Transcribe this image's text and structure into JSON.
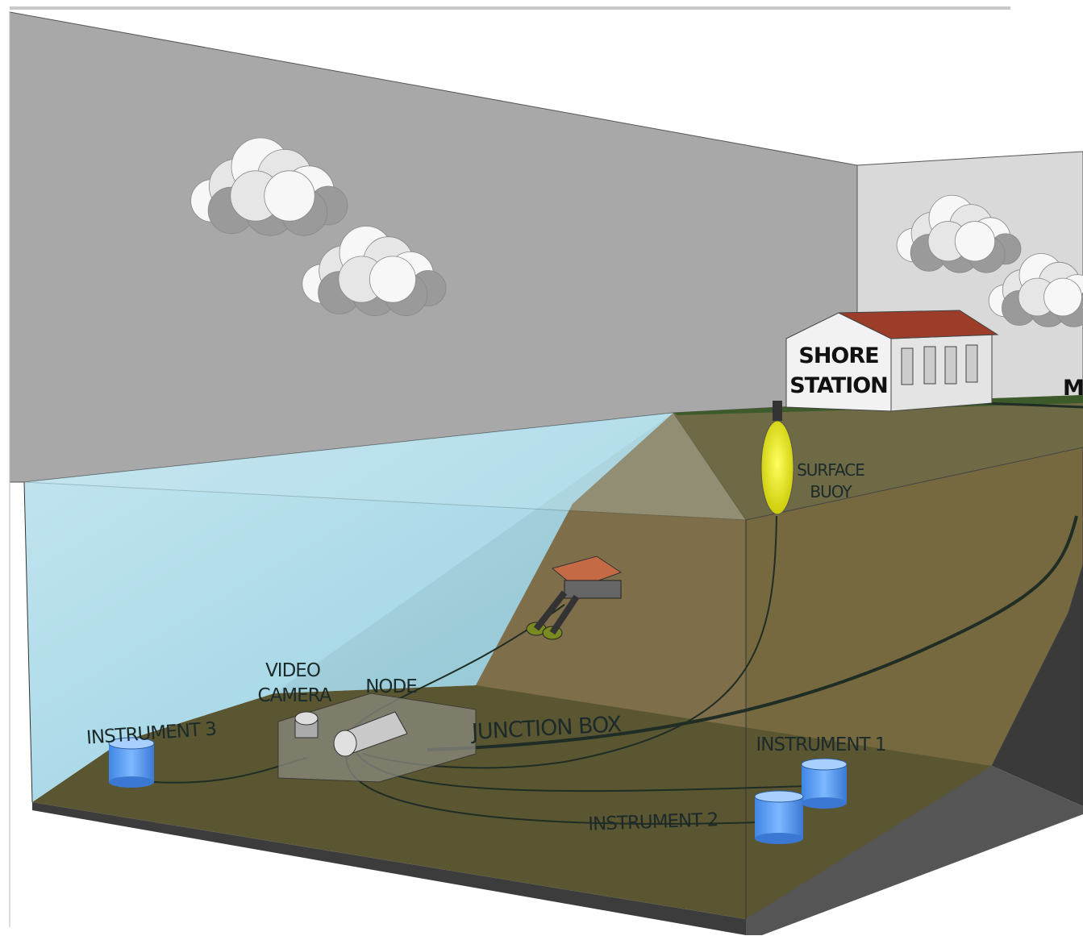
{
  "labels": {
    "shore_station": [
      "SHORE",
      "STATION"
    ],
    "cut_label": "M",
    "surface_buoy": [
      "SURFACE",
      "BUOY"
    ],
    "video_camera": [
      "VIDEO",
      "CAMERA"
    ],
    "node": "NODE",
    "junction_box": "JUNCTION BOX",
    "instrument_3": "INSTRUMENT 3",
    "instrument_1": "INSTRUMENT 1",
    "instrument_2": "INSTRUMENT 2"
  }
}
